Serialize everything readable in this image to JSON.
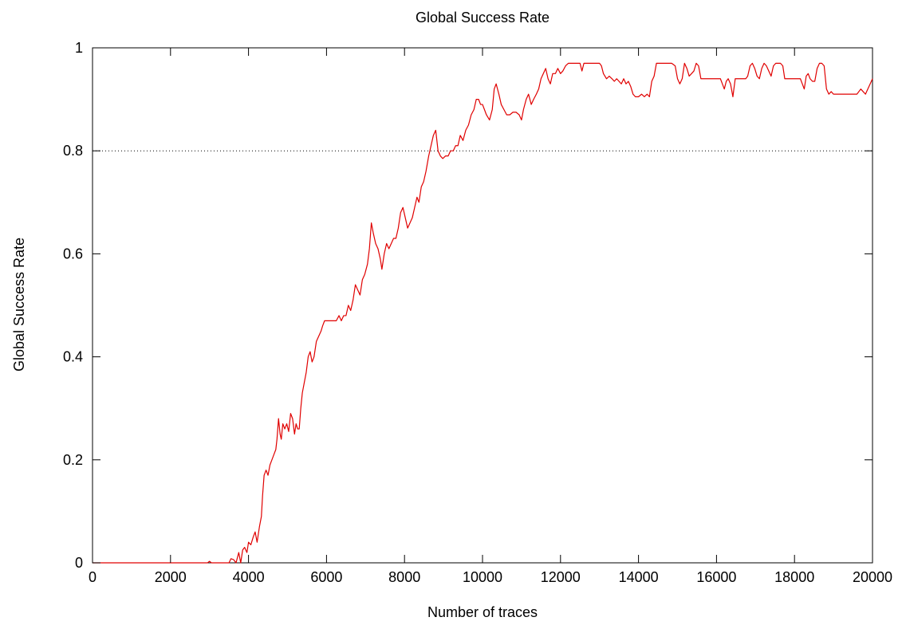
{
  "chart_data": {
    "type": "line",
    "title": "Global Success Rate",
    "xlabel": "Number of traces",
    "ylabel": "Global Success Rate",
    "xlim": [
      0,
      20000
    ],
    "ylim": [
      0,
      1
    ],
    "x_ticks": [
      "0",
      "2000",
      "4000",
      "6000",
      "8000",
      "10000",
      "12000",
      "14000",
      "16000",
      "18000",
      "20000"
    ],
    "y_ticks": [
      "0",
      "0.2",
      "0.4",
      "0.6",
      "0.8",
      "1"
    ],
    "grid": false,
    "threshold_line": {
      "y": 0.8,
      "style": "dotted",
      "color": "#000000"
    },
    "series": [
      {
        "color": "#e00000",
        "points": [
          [
            0,
            0
          ],
          [
            500,
            0
          ],
          [
            1000,
            0
          ],
          [
            1500,
            0
          ],
          [
            2000,
            0
          ],
          [
            2500,
            0
          ],
          [
            2950,
            0
          ],
          [
            3000,
            0.003
          ],
          [
            3050,
            0
          ],
          [
            3400,
            0
          ],
          [
            3500,
            0
          ],
          [
            3550,
            0.008
          ],
          [
            3620,
            0.006
          ],
          [
            3680,
            0
          ],
          [
            3750,
            0.02
          ],
          [
            3800,
            0
          ],
          [
            3850,
            0.025
          ],
          [
            3900,
            0.03
          ],
          [
            3960,
            0.02
          ],
          [
            4000,
            0.04
          ],
          [
            4060,
            0.035
          ],
          [
            4120,
            0.05
          ],
          [
            4170,
            0.06
          ],
          [
            4220,
            0.04
          ],
          [
            4280,
            0.07
          ],
          [
            4330,
            0.09
          ],
          [
            4360,
            0.13
          ],
          [
            4400,
            0.17
          ],
          [
            4450,
            0.18
          ],
          [
            4500,
            0.17
          ],
          [
            4550,
            0.19
          ],
          [
            4600,
            0.2
          ],
          [
            4650,
            0.21
          ],
          [
            4700,
            0.22
          ],
          [
            4730,
            0.24
          ],
          [
            4770,
            0.28
          ],
          [
            4810,
            0.25
          ],
          [
            4840,
            0.24
          ],
          [
            4880,
            0.27
          ],
          [
            4930,
            0.26
          ],
          [
            4980,
            0.27
          ],
          [
            5030,
            0.255
          ],
          [
            5080,
            0.29
          ],
          [
            5130,
            0.28
          ],
          [
            5180,
            0.25
          ],
          [
            5220,
            0.27
          ],
          [
            5260,
            0.26
          ],
          [
            5300,
            0.26
          ],
          [
            5340,
            0.3
          ],
          [
            5380,
            0.33
          ],
          [
            5430,
            0.35
          ],
          [
            5480,
            0.37
          ],
          [
            5530,
            0.4
          ],
          [
            5580,
            0.41
          ],
          [
            5630,
            0.39
          ],
          [
            5680,
            0.4
          ],
          [
            5740,
            0.43
          ],
          [
            5800,
            0.44
          ],
          [
            5860,
            0.45
          ],
          [
            5900,
            0.46
          ],
          [
            5950,
            0.47
          ],
          [
            6050,
            0.47
          ],
          [
            6150,
            0.47
          ],
          [
            6250,
            0.47
          ],
          [
            6320,
            0.48
          ],
          [
            6380,
            0.47
          ],
          [
            6440,
            0.48
          ],
          [
            6500,
            0.48
          ],
          [
            6560,
            0.5
          ],
          [
            6620,
            0.49
          ],
          [
            6680,
            0.51
          ],
          [
            6740,
            0.54
          ],
          [
            6800,
            0.53
          ],
          [
            6860,
            0.52
          ],
          [
            6920,
            0.55
          ],
          [
            6980,
            0.56
          ],
          [
            7050,
            0.58
          ],
          [
            7100,
            0.61
          ],
          [
            7150,
            0.66
          ],
          [
            7200,
            0.64
          ],
          [
            7260,
            0.62
          ],
          [
            7320,
            0.61
          ],
          [
            7380,
            0.59
          ],
          [
            7420,
            0.57
          ],
          [
            7480,
            0.6
          ],
          [
            7540,
            0.62
          ],
          [
            7600,
            0.61
          ],
          [
            7660,
            0.62
          ],
          [
            7720,
            0.63
          ],
          [
            7780,
            0.63
          ],
          [
            7840,
            0.65
          ],
          [
            7900,
            0.68
          ],
          [
            7960,
            0.69
          ],
          [
            8020,
            0.67
          ],
          [
            8080,
            0.65
          ],
          [
            8140,
            0.66
          ],
          [
            8200,
            0.67
          ],
          [
            8260,
            0.69
          ],
          [
            8320,
            0.71
          ],
          [
            8370,
            0.7
          ],
          [
            8430,
            0.73
          ],
          [
            8490,
            0.74
          ],
          [
            8550,
            0.76
          ],
          [
            8620,
            0.79
          ],
          [
            8680,
            0.81
          ],
          [
            8740,
            0.83
          ],
          [
            8800,
            0.84
          ],
          [
            8860,
            0.8
          ],
          [
            8920,
            0.79
          ],
          [
            8980,
            0.785
          ],
          [
            9050,
            0.79
          ],
          [
            9120,
            0.79
          ],
          [
            9180,
            0.8
          ],
          [
            9250,
            0.8
          ],
          [
            9310,
            0.81
          ],
          [
            9370,
            0.81
          ],
          [
            9430,
            0.83
          ],
          [
            9500,
            0.82
          ],
          [
            9570,
            0.84
          ],
          [
            9640,
            0.85
          ],
          [
            9710,
            0.87
          ],
          [
            9780,
            0.88
          ],
          [
            9840,
            0.9
          ],
          [
            9900,
            0.9
          ],
          [
            9950,
            0.89
          ],
          [
            10000,
            0.89
          ],
          [
            10050,
            0.88
          ],
          [
            10100,
            0.87
          ],
          [
            10180,
            0.86
          ],
          [
            10250,
            0.88
          ],
          [
            10300,
            0.92
          ],
          [
            10350,
            0.93
          ],
          [
            10420,
            0.91
          ],
          [
            10480,
            0.89
          ],
          [
            10550,
            0.88
          ],
          [
            10620,
            0.87
          ],
          [
            10700,
            0.87
          ],
          [
            10780,
            0.875
          ],
          [
            10860,
            0.875
          ],
          [
            10940,
            0.87
          ],
          [
            11000,
            0.86
          ],
          [
            11050,
            0.88
          ],
          [
            11120,
            0.9
          ],
          [
            11180,
            0.91
          ],
          [
            11250,
            0.89
          ],
          [
            11310,
            0.9
          ],
          [
            11380,
            0.91
          ],
          [
            11440,
            0.92
          ],
          [
            11500,
            0.94
          ],
          [
            11560,
            0.95
          ],
          [
            11620,
            0.96
          ],
          [
            11680,
            0.94
          ],
          [
            11740,
            0.93
          ],
          [
            11800,
            0.95
          ],
          [
            11870,
            0.95
          ],
          [
            11930,
            0.96
          ],
          [
            12000,
            0.95
          ],
          [
            12060,
            0.955
          ],
          [
            12130,
            0.965
          ],
          [
            12200,
            0.97
          ],
          [
            12300,
            0.97
          ],
          [
            12400,
            0.97
          ],
          [
            12500,
            0.97
          ],
          [
            12550,
            0.955
          ],
          [
            12600,
            0.97
          ],
          [
            12700,
            0.97
          ],
          [
            12800,
            0.97
          ],
          [
            12900,
            0.97
          ],
          [
            13000,
            0.97
          ],
          [
            13050,
            0.965
          ],
          [
            13100,
            0.95
          ],
          [
            13180,
            0.94
          ],
          [
            13250,
            0.945
          ],
          [
            13320,
            0.94
          ],
          [
            13380,
            0.935
          ],
          [
            13440,
            0.94
          ],
          [
            13500,
            0.935
          ],
          [
            13560,
            0.93
          ],
          [
            13620,
            0.94
          ],
          [
            13680,
            0.93
          ],
          [
            13740,
            0.935
          ],
          [
            13800,
            0.925
          ],
          [
            13860,
            0.91
          ],
          [
            13920,
            0.905
          ],
          [
            14000,
            0.905
          ],
          [
            14080,
            0.91
          ],
          [
            14150,
            0.905
          ],
          [
            14220,
            0.91
          ],
          [
            14280,
            0.905
          ],
          [
            14340,
            0.935
          ],
          [
            14400,
            0.945
          ],
          [
            14460,
            0.97
          ],
          [
            14550,
            0.97
          ],
          [
            14650,
            0.97
          ],
          [
            14750,
            0.97
          ],
          [
            14850,
            0.97
          ],
          [
            14940,
            0.965
          ],
          [
            15000,
            0.94
          ],
          [
            15060,
            0.93
          ],
          [
            15120,
            0.94
          ],
          [
            15180,
            0.97
          ],
          [
            15240,
            0.96
          ],
          [
            15300,
            0.945
          ],
          [
            15360,
            0.95
          ],
          [
            15420,
            0.955
          ],
          [
            15480,
            0.97
          ],
          [
            15540,
            0.965
          ],
          [
            15600,
            0.94
          ],
          [
            15700,
            0.94
          ],
          [
            15800,
            0.94
          ],
          [
            15900,
            0.94
          ],
          [
            16000,
            0.94
          ],
          [
            16100,
            0.94
          ],
          [
            16150,
            0.93
          ],
          [
            16200,
            0.92
          ],
          [
            16250,
            0.935
          ],
          [
            16300,
            0.94
          ],
          [
            16360,
            0.93
          ],
          [
            16420,
            0.905
          ],
          [
            16480,
            0.94
          ],
          [
            16550,
            0.94
          ],
          [
            16650,
            0.94
          ],
          [
            16750,
            0.94
          ],
          [
            16800,
            0.945
          ],
          [
            16860,
            0.965
          ],
          [
            16920,
            0.97
          ],
          [
            16980,
            0.96
          ],
          [
            17040,
            0.945
          ],
          [
            17100,
            0.94
          ],
          [
            17160,
            0.96
          ],
          [
            17220,
            0.97
          ],
          [
            17280,
            0.965
          ],
          [
            17340,
            0.955
          ],
          [
            17400,
            0.945
          ],
          [
            17460,
            0.965
          ],
          [
            17520,
            0.97
          ],
          [
            17580,
            0.97
          ],
          [
            17640,
            0.97
          ],
          [
            17700,
            0.965
          ],
          [
            17750,
            0.94
          ],
          [
            17850,
            0.94
          ],
          [
            17950,
            0.94
          ],
          [
            18050,
            0.94
          ],
          [
            18150,
            0.94
          ],
          [
            18200,
            0.93
          ],
          [
            18250,
            0.92
          ],
          [
            18300,
            0.945
          ],
          [
            18350,
            0.95
          ],
          [
            18400,
            0.94
          ],
          [
            18460,
            0.935
          ],
          [
            18520,
            0.935
          ],
          [
            18580,
            0.96
          ],
          [
            18640,
            0.97
          ],
          [
            18700,
            0.97
          ],
          [
            18760,
            0.965
          ],
          [
            18820,
            0.92
          ],
          [
            18880,
            0.91
          ],
          [
            18940,
            0.915
          ],
          [
            19000,
            0.91
          ],
          [
            19100,
            0.91
          ],
          [
            19200,
            0.91
          ],
          [
            19300,
            0.91
          ],
          [
            19400,
            0.91
          ],
          [
            19500,
            0.91
          ],
          [
            19600,
            0.91
          ],
          [
            19700,
            0.92
          ],
          [
            19760,
            0.915
          ],
          [
            19820,
            0.91
          ],
          [
            19880,
            0.92
          ],
          [
            19940,
            0.93
          ],
          [
            20000,
            0.94
          ]
        ]
      }
    ]
  }
}
